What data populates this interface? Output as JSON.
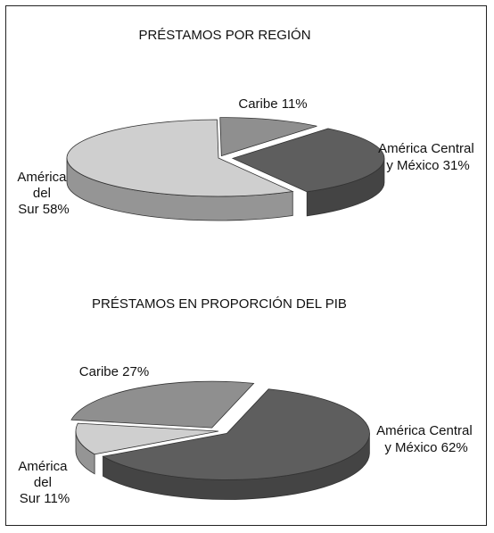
{
  "chart_data": [
    {
      "type": "pie",
      "title": "PRÉSTAMOS POR REGIÓN",
      "slices": [
        {
          "label_lines": [
            "Caribe 11%"
          ],
          "value": 11,
          "color": "#8f8f8f"
        },
        {
          "label_lines": [
            "América Central",
            "y México 31%"
          ],
          "value": 31,
          "color": "#5e5e5e"
        },
        {
          "label_lines": [
            "América",
            "del",
            "Sur 58%"
          ],
          "value": 58,
          "color": "#cfcfcf"
        }
      ]
    },
    {
      "type": "pie",
      "title": "PRÉSTAMOS EN PROPORCIÓN DEL PIB",
      "slices": [
        {
          "label_lines": [
            "Caribe 27%"
          ],
          "value": 27,
          "color": "#8f8f8f"
        },
        {
          "label_lines": [
            "América Central",
            "y México 62%"
          ],
          "value": 62,
          "color": "#5e5e5e"
        },
        {
          "label_lines": [
            "América",
            "del",
            "Sur 11%"
          ],
          "value": 11,
          "color": "#cfcfcf"
        }
      ]
    }
  ]
}
